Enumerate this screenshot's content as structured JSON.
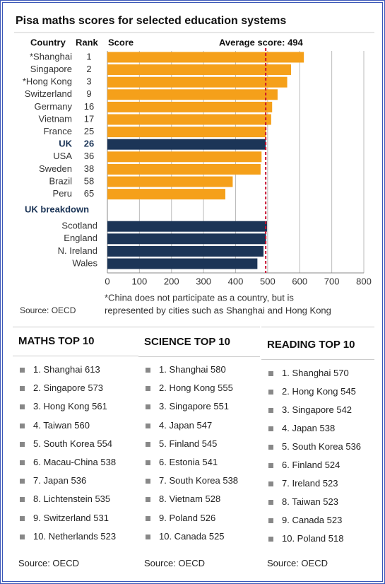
{
  "chart_data": {
    "type": "bar",
    "orientation": "horizontal",
    "title": "Pisa maths scores for selected education systems",
    "columns": [
      "Country",
      "Rank",
      "Score"
    ],
    "categories": [
      "*Shanghai",
      "Singapore",
      "*Hong Kong",
      "Switzerland",
      "Germany",
      "Vietnam",
      "France",
      "UK",
      "USA",
      "Sweden",
      "Brazil",
      "Peru"
    ],
    "ranks": [
      1,
      2,
      3,
      9,
      16,
      17,
      25,
      26,
      36,
      38,
      58,
      65
    ],
    "values": [
      613,
      573,
      561,
      531,
      514,
      511,
      495,
      494,
      481,
      478,
      391,
      368
    ],
    "colors": [
      "#f5a01a",
      "#f5a01a",
      "#f5a01a",
      "#f5a01a",
      "#f5a01a",
      "#f5a01a",
      "#f5a01a",
      "#1c3557",
      "#f5a01a",
      "#f5a01a",
      "#f5a01a",
      "#f5a01a"
    ],
    "breakdown": {
      "title": "UK breakdown",
      "categories": [
        "Scotland",
        "England",
        "N. Ireland",
        "Wales"
      ],
      "values": [
        498,
        495,
        487,
        468
      ],
      "color": "#1c3557"
    },
    "average": {
      "value": 494,
      "label": "Average score: 494",
      "color": "#c8102e"
    },
    "xlim": [
      0,
      800
    ],
    "xticks": [
      0,
      100,
      200,
      300,
      400,
      500,
      600,
      700,
      800
    ],
    "grid": true,
    "footnote": [
      "*China does not participate as a country, but is",
      "represented by cities such as Shanghai and Hong Kong"
    ],
    "source": "Source: OECD"
  },
  "lists": [
    {
      "title": "MATHS TOP 10",
      "items": [
        "1. Shanghai 613",
        "2. Singapore 573",
        "3. Hong Kong 561",
        "4. Taiwan 560",
        "5. South Korea 554",
        "6. Macau-China 538",
        "7. Japan 536",
        "8. Lichtenstein 535",
        "9. Switzerland 531",
        "10. Netherlands 523"
      ],
      "source": "Source: OECD"
    },
    {
      "title": "SCIENCE TOP 10",
      "items": [
        "1. Shanghai 580",
        "2. Hong Kong 555",
        "3. Singapore 551",
        "4. Japan 547",
        "5. Finland 545",
        "6. Estonia 541",
        "7. South Korea 538",
        "8. Vietnam 528",
        "9. Poland 526",
        "10. Canada 525"
      ],
      "source": "Source: OECD"
    },
    {
      "title": "READING TOP 10",
      "items": [
        "1. Shanghai 570",
        "2. Hong Kong 545",
        "3. Singapore 542",
        "4. Japan 538",
        "5. South Korea 536",
        "6. Finland 524",
        "7. Ireland 523",
        "8. Taiwan 523",
        "9. Canada 523",
        "10. Poland 518"
      ],
      "source": "Source: OECD"
    }
  ]
}
